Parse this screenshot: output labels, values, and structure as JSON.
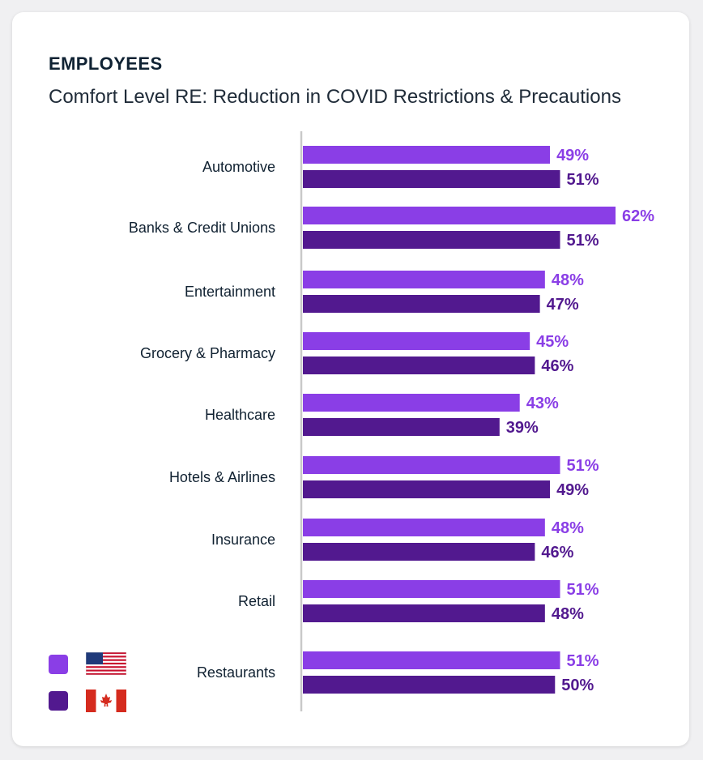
{
  "header": {
    "title": "EMPLOYEES",
    "subtitle": "Comfort Level RE: Reduction in COVID Restrictions & Precautions"
  },
  "colors": {
    "us": "#8a3ee6",
    "canada": "#52198f",
    "axis": "#c9c9c9"
  },
  "legend": [
    {
      "key": "us",
      "icon": "us-flag-icon"
    },
    {
      "key": "canada",
      "icon": "canada-flag-icon"
    }
  ],
  "chart_data": {
    "type": "bar",
    "orientation": "horizontal",
    "categories": [
      "Automotive",
      "Banks & Credit Unions",
      "Entertainment",
      "Grocery & Pharmacy",
      "Healthcare",
      "Hotels & Airlines",
      "Insurance",
      "Retail",
      "Restaurants"
    ],
    "series": [
      {
        "key": "us",
        "values": [
          49,
          62,
          48,
          45,
          43,
          51,
          48,
          51,
          51
        ]
      },
      {
        "key": "canada",
        "values": [
          51,
          51,
          47,
          46,
          39,
          49,
          46,
          48,
          50
        ]
      }
    ],
    "value_suffix": "%",
    "xlim": [
      0,
      62
    ],
    "legend_position": "bottom-left",
    "grid": false
  }
}
